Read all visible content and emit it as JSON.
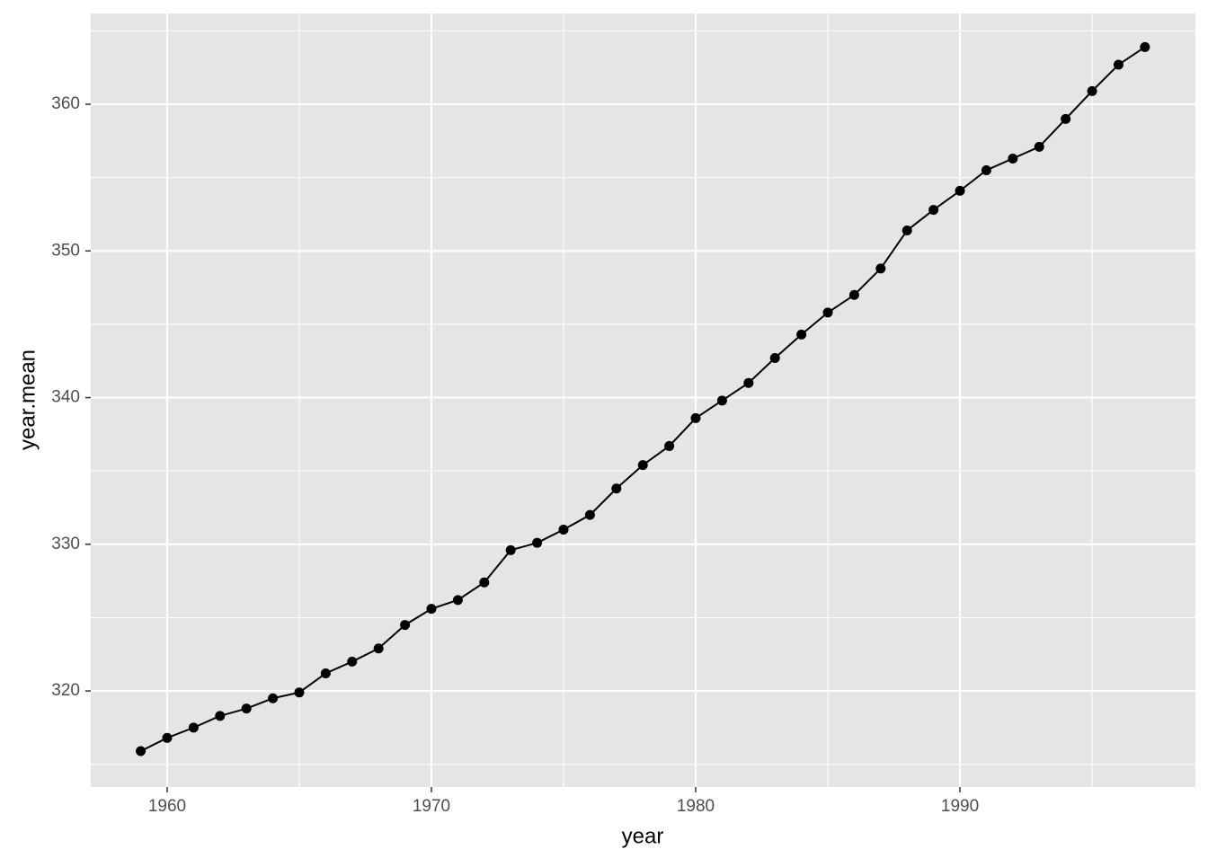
{
  "chart_data": {
    "type": "line",
    "x_label": "year",
    "y_label": "year.mean",
    "x": [
      1959,
      1960,
      1961,
      1962,
      1963,
      1964,
      1965,
      1966,
      1967,
      1968,
      1969,
      1970,
      1971,
      1972,
      1973,
      1974,
      1975,
      1976,
      1977,
      1978,
      1979,
      1980,
      1981,
      1982,
      1983,
      1984,
      1985,
      1986,
      1987,
      1988,
      1989,
      1990,
      1991,
      1992,
      1993,
      1994,
      1995,
      1996,
      1997
    ],
    "values": [
      315.9,
      316.8,
      317.5,
      318.3,
      318.8,
      319.5,
      319.9,
      321.2,
      322.0,
      322.9,
      324.5,
      325.6,
      326.2,
      327.4,
      329.6,
      330.1,
      331.0,
      332.0,
      333.8,
      335.4,
      336.7,
      338.6,
      339.8,
      341.0,
      342.7,
      344.3,
      345.8,
      347.0,
      348.8,
      351.4,
      352.8,
      354.1,
      355.5,
      356.3,
      357.1,
      359.0,
      360.9,
      362.7,
      363.9
    ],
    "color": "#000000",
    "xlim": [
      1957.11,
      1998.91
    ],
    "ylim": [
      313.45,
      366.19
    ],
    "xticks": [
      1960,
      1970,
      1980,
      1990
    ],
    "yticks": [
      320,
      330,
      340,
      350,
      360
    ],
    "x_minor_breaks": [
      1965,
      1975,
      1985,
      1995
    ],
    "y_minor_breaks": [
      315,
      325,
      335,
      345,
      355,
      365
    ],
    "grid": true,
    "points": true
  }
}
